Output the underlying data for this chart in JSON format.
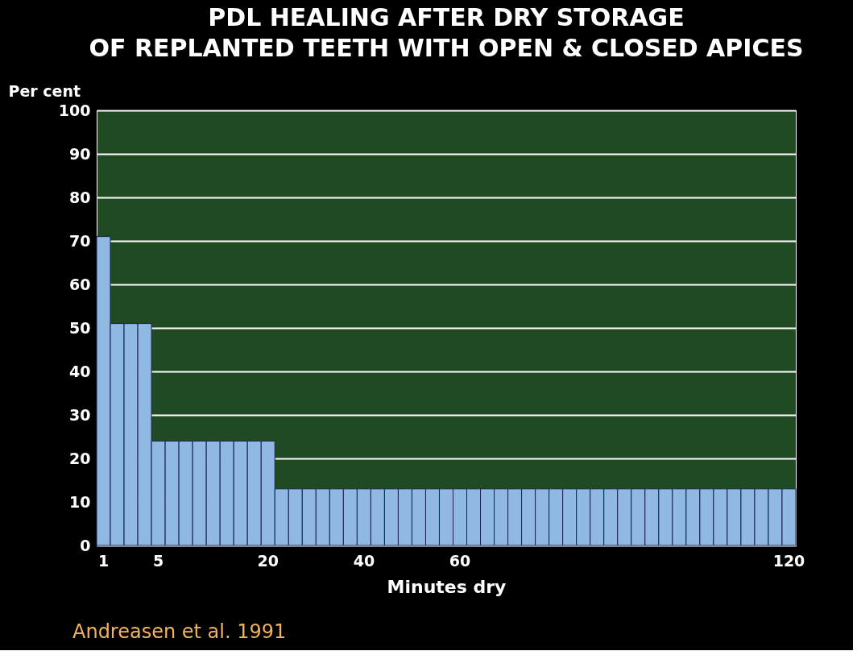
{
  "chart_data": {
    "type": "bar",
    "title": "PDL HEALING AFTER DRY STORAGE\nOF REPLANTED TEETH WITH OPEN & CLOSED APICES",
    "xlabel": "Minutes dry",
    "ylabel": "Per cent",
    "categories": [
      "1",
      null,
      null,
      null,
      "5",
      null,
      null,
      null,
      null,
      null,
      null,
      null,
      "20",
      null,
      null,
      null,
      null,
      null,
      null,
      "40",
      null,
      null,
      null,
      null,
      null,
      null,
      "60",
      null,
      null,
      null,
      null,
      null,
      null,
      null,
      null,
      null,
      null,
      null,
      null,
      null,
      null,
      null,
      null,
      null,
      null,
      null,
      null,
      null,
      null,
      null,
      "120"
    ],
    "values": [
      71,
      51,
      51,
      51,
      24,
      24,
      24,
      24,
      24,
      24,
      24,
      24,
      24,
      13,
      13,
      13,
      13,
      13,
      13,
      13,
      13,
      13,
      13,
      13,
      13,
      13,
      13,
      13,
      13,
      13,
      13,
      13,
      13,
      13,
      13,
      13,
      13,
      13,
      13,
      13,
      13,
      13,
      13,
      13,
      13,
      13,
      13,
      13,
      13,
      13,
      13
    ],
    "color": "#8fb8e2",
    "ylim": [
      0,
      100
    ],
    "yticks": [
      0,
      10,
      20,
      30,
      40,
      50,
      60,
      70,
      80,
      90,
      100
    ],
    "grid": "y",
    "annotations": [
      "Andreasen et al. 1991"
    ]
  }
}
